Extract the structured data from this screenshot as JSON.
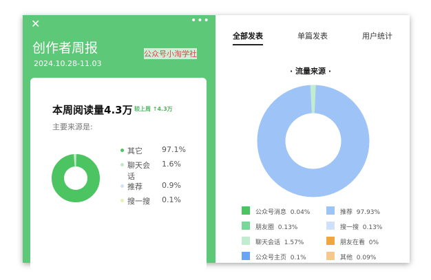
{
  "left": {
    "title": "创作者周报",
    "date": "2024.10.28-11.03",
    "watermark": "公众号小淘学社",
    "headline": "本周阅读量4.3万",
    "compare": "较上周 ↑4.3万",
    "subtitle": "主要来源是:",
    "sources": [
      {
        "label": "其它",
        "value": "97.1%",
        "color": "#4cc461"
      },
      {
        "label": "聊天会话",
        "value": "1.6%",
        "color": "#bfe9c8"
      },
      {
        "label": "推荐",
        "value": "0.9%",
        "color": "#cfe2f7"
      },
      {
        "label": "搜一搜",
        "value": "0.1%",
        "color": "#e9efb3"
      }
    ]
  },
  "right": {
    "tabs": [
      "全部发表",
      "单篇发表",
      "用户统计"
    ],
    "active_tab": 0,
    "chart_title": "· 流量来源 ·",
    "legend": [
      {
        "label": "公众号消息",
        "value": "0.04%",
        "color": "#4cc461"
      },
      {
        "label": "推荐",
        "value": "97.93%",
        "color": "#9ec3f7"
      },
      {
        "label": "朋友圈",
        "value": "0.13%",
        "color": "#7ad79a"
      },
      {
        "label": "搜一搜",
        "value": "0.13%",
        "color": "#cfe0fa"
      },
      {
        "label": "聊天会话",
        "value": "1.57%",
        "color": "#c2ecd0"
      },
      {
        "label": "朋友在看",
        "value": "0%",
        "color": "#f0a641"
      },
      {
        "label": "公众号主页",
        "value": "0.1%",
        "color": "#6aa5f5"
      },
      {
        "label": "其他",
        "value": "0.09%",
        "color": "#f5c98d"
      }
    ]
  }
}
